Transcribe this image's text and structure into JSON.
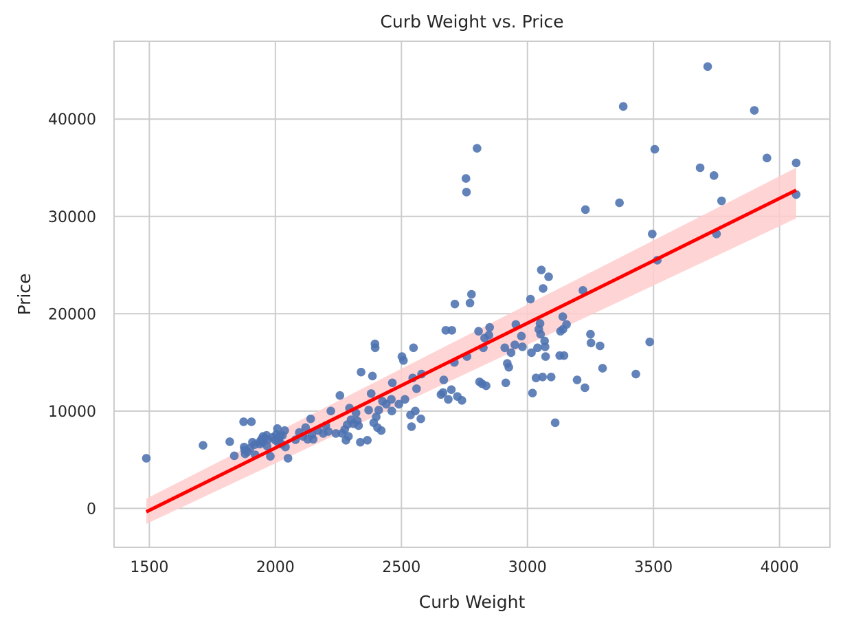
{
  "chart_data": {
    "type": "scatter",
    "title": "Curb Weight vs. Price",
    "xlabel": "Curb Weight",
    "ylabel": "Price",
    "xlim": [
      1360,
      4200
    ],
    "ylim": [
      -4000,
      48000
    ],
    "xticks": [
      1500,
      2000,
      2500,
      3000,
      3500,
      4000
    ],
    "yticks": [
      0,
      10000,
      20000,
      30000,
      40000
    ],
    "grid": true,
    "colors": {
      "points": "#4c72b0",
      "line": "#ff0000",
      "band": "#ffcccc",
      "grid": "#cccccc",
      "frame": "#cccccc"
    },
    "regression": {
      "x": [
        1488,
        4066
      ],
      "y": [
        -350,
        32700
      ],
      "ci_lower": [
        -1600,
        29800
      ],
      "ci_upper": [
        1000,
        35000
      ]
    },
    "series": [
      {
        "values": [
          [
            1488,
            5150
          ],
          [
            1713,
            6480
          ],
          [
            1819,
            6850
          ],
          [
            1837,
            5400
          ],
          [
            1874,
            8900
          ],
          [
            1876,
            6300
          ],
          [
            1878,
            6000
          ],
          [
            1880,
            5600
          ],
          [
            1889,
            5800
          ],
          [
            1900,
            6200
          ],
          [
            1905,
            8900
          ],
          [
            1909,
            6800
          ],
          [
            1918,
            6550
          ],
          [
            1920,
            5500
          ],
          [
            1938,
            6600
          ],
          [
            1940,
            6900
          ],
          [
            1945,
            7100
          ],
          [
            1950,
            6800
          ],
          [
            1951,
            7400
          ],
          [
            1956,
            7200
          ],
          [
            1965,
            7500
          ],
          [
            1967,
            6400
          ],
          [
            1971,
            7100
          ],
          [
            1980,
            5350
          ],
          [
            1989,
            7300
          ],
          [
            2000,
            7000
          ],
          [
            2004,
            7600
          ],
          [
            2008,
            8200
          ],
          [
            2010,
            6800
          ],
          [
            2015,
            7200
          ],
          [
            2017,
            7400
          ],
          [
            2024,
            6600
          ],
          [
            2028,
            7500
          ],
          [
            2037,
            8000
          ],
          [
            2040,
            6300
          ],
          [
            2050,
            5150
          ],
          [
            2080,
            7050
          ],
          [
            2095,
            7800
          ],
          [
            2110,
            7400
          ],
          [
            2120,
            8300
          ],
          [
            2128,
            7100
          ],
          [
            2140,
            9200
          ],
          [
            2145,
            7600
          ],
          [
            2150,
            7100
          ],
          [
            2170,
            8000
          ],
          [
            2190,
            7700
          ],
          [
            2200,
            8500
          ],
          [
            2210,
            7900
          ],
          [
            2220,
            10000
          ],
          [
            2240,
            7700
          ],
          [
            2256,
            11600
          ],
          [
            2265,
            7700
          ],
          [
            2275,
            8100
          ],
          [
            2280,
            7000
          ],
          [
            2285,
            8600
          ],
          [
            2290,
            7400
          ],
          [
            2294,
            10300
          ],
          [
            2300,
            9100
          ],
          [
            2310,
            8700
          ],
          [
            2320,
            9800
          ],
          [
            2325,
            9000
          ],
          [
            2330,
            8500
          ],
          [
            2337,
            6800
          ],
          [
            2340,
            14000
          ],
          [
            2365,
            7000
          ],
          [
            2370,
            10100
          ],
          [
            2380,
            11800
          ],
          [
            2385,
            13600
          ],
          [
            2390,
            8800
          ],
          [
            2395,
            16900
          ],
          [
            2396,
            16500
          ],
          [
            2400,
            9400
          ],
          [
            2405,
            8300
          ],
          [
            2410,
            10100
          ],
          [
            2420,
            8000
          ],
          [
            2425,
            11000
          ],
          [
            2440,
            10700
          ],
          [
            2460,
            11200
          ],
          [
            2462,
            10000
          ],
          [
            2464,
            12900
          ],
          [
            2490,
            10700
          ],
          [
            2502,
            15600
          ],
          [
            2508,
            15200
          ],
          [
            2514,
            11200
          ],
          [
            2536,
            9600
          ],
          [
            2540,
            8400
          ],
          [
            2545,
            13400
          ],
          [
            2548,
            16500
          ],
          [
            2555,
            10000
          ],
          [
            2560,
            12300
          ],
          [
            2577,
            9200
          ],
          [
            2580,
            13800
          ],
          [
            2657,
            11700
          ],
          [
            2665,
            11900
          ],
          [
            2668,
            13200
          ],
          [
            2676,
            18300
          ],
          [
            2686,
            11200
          ],
          [
            2698,
            12200
          ],
          [
            2700,
            18300
          ],
          [
            2710,
            15000
          ],
          [
            2712,
            21000
          ],
          [
            2722,
            11500
          ],
          [
            2740,
            11100
          ],
          [
            2756,
            33900
          ],
          [
            2758,
            32500
          ],
          [
            2760,
            15600
          ],
          [
            2772,
            21100
          ],
          [
            2778,
            22000
          ],
          [
            2800,
            37000
          ],
          [
            2806,
            18200
          ],
          [
            2810,
            13000
          ],
          [
            2820,
            12800
          ],
          [
            2825,
            16500
          ],
          [
            2830,
            17500
          ],
          [
            2836,
            12600
          ],
          [
            2847,
            17800
          ],
          [
            2850,
            18600
          ],
          [
            2910,
            16500
          ],
          [
            2914,
            12900
          ],
          [
            2920,
            14900
          ],
          [
            2926,
            14500
          ],
          [
            2935,
            16000
          ],
          [
            2950,
            16800
          ],
          [
            2954,
            18900
          ],
          [
            2976,
            17700
          ],
          [
            2980,
            16600
          ],
          [
            3012,
            21500
          ],
          [
            3016,
            16000
          ],
          [
            3020,
            11850
          ],
          [
            3034,
            13400
          ],
          [
            3040,
            16500
          ],
          [
            3045,
            18400
          ],
          [
            3050,
            19000
          ],
          [
            3052,
            17900
          ],
          [
            3055,
            24500
          ],
          [
            3060,
            13500
          ],
          [
            3062,
            22600
          ],
          [
            3068,
            17200
          ],
          [
            3070,
            16600
          ],
          [
            3072,
            15600
          ],
          [
            3084,
            23800
          ],
          [
            3094,
            13500
          ],
          [
            3110,
            8800
          ],
          [
            3128,
            15700
          ],
          [
            3131,
            18200
          ],
          [
            3140,
            19700
          ],
          [
            3141,
            18400
          ],
          [
            3145,
            15700
          ],
          [
            3155,
            18900
          ],
          [
            3197,
            13200
          ],
          [
            3220,
            22400
          ],
          [
            3228,
            12400
          ],
          [
            3230,
            30700
          ],
          [
            3250,
            17900
          ],
          [
            3252,
            17000
          ],
          [
            3288,
            16700
          ],
          [
            3298,
            14400
          ],
          [
            3365,
            31400
          ],
          [
            3380,
            41300
          ],
          [
            3430,
            13800
          ],
          [
            3485,
            17100
          ],
          [
            3495,
            28200
          ],
          [
            3505,
            36900
          ],
          [
            3515,
            25500
          ],
          [
            3685,
            35000
          ],
          [
            3715,
            45400
          ],
          [
            3740,
            34200
          ],
          [
            3750,
            28200
          ],
          [
            3770,
            31600
          ],
          [
            3900,
            40900
          ],
          [
            3950,
            36000
          ],
          [
            4066,
            35500
          ],
          [
            4066,
            32250
          ]
        ]
      }
    ]
  }
}
